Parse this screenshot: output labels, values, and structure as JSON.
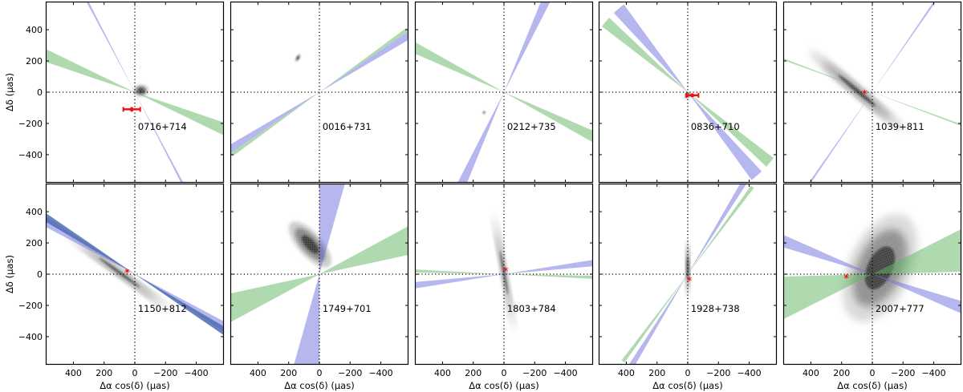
{
  "figure": {
    "x_axis_label": "Δα cos(δ) (μas)",
    "y_axis_label": "Δδ (μas)",
    "x_ticks": [
      400,
      200,
      0,
      -200,
      -400
    ],
    "y_ticks": [
      400,
      200,
      0,
      -200,
      -400
    ],
    "x_tick_labels": [
      "400",
      "200",
      "0",
      "−200",
      "−400"
    ],
    "y_tick_labels": [
      "400",
      "200",
      "0",
      "−200",
      "−400"
    ],
    "colors": {
      "blue_band": "#7070e0",
      "green_band": "#5fb55f",
      "overlap_band": "#4f6fb2",
      "marker": "#ee1111",
      "density": "#000000"
    }
  },
  "chart_data": [
    {
      "type": "heatmap",
      "source": "0716+714",
      "xlim": [
        580,
        -580
      ],
      "ylim": [
        -580,
        580
      ],
      "grid": false,
      "density": {
        "center": [
          -40,
          10
        ],
        "major_sigma": 45,
        "minor_sigma": 35,
        "angle_deg": 0,
        "tail_alpha": 0.2
      },
      "bands": [
        {
          "color": "blue",
          "angle_deg": -62,
          "width_deg": 1.2,
          "extent": 700
        },
        {
          "color": "green",
          "angle_deg": -22,
          "width_deg": 7,
          "extent": 700
        }
      ],
      "marker": {
        "x": 20,
        "y": -110,
        "xerr": 55,
        "yerr": 15,
        "style": "errorbar"
      }
    },
    {
      "type": "heatmap",
      "source": "0016+731",
      "xlim": [
        580,
        -580
      ],
      "ylim": [
        -580,
        580
      ],
      "grid": false,
      "density": {
        "center": [
          140,
          220
        ],
        "major_sigma": 25,
        "minor_sigma": 8,
        "angle_deg": 60,
        "tail_alpha": 0.7
      },
      "bands": [
        {
          "color": "blue",
          "angle_deg": 32,
          "width_deg": 4,
          "extent": 700
        },
        {
          "color": "green",
          "angle_deg": 35,
          "width_deg": 2,
          "extent": 700
        }
      ],
      "marker": null
    },
    {
      "type": "heatmap",
      "source": "0212+735",
      "xlim": [
        580,
        -580
      ],
      "ylim": [
        -580,
        580
      ],
      "grid": false,
      "density": {
        "center": [
          130,
          -130
        ],
        "major_sigma": 10,
        "minor_sigma": 5,
        "angle_deg": 60,
        "tail_alpha": 0.7
      },
      "bands": [
        {
          "color": "blue",
          "angle_deg": 65,
          "width_deg": 5,
          "extent": 700
        },
        {
          "color": "green",
          "angle_deg": -26,
          "width_deg": 6,
          "extent": 700
        }
      ],
      "marker": null
    },
    {
      "type": "heatmap",
      "source": "0836+710",
      "xlim": [
        580,
        -580
      ],
      "ylim": [
        -580,
        580
      ],
      "grid": false,
      "density": {
        "center": [
          0,
          -20
        ],
        "major_sigma": 22,
        "minor_sigma": 14,
        "angle_deg": 40,
        "tail_alpha": 0.5
      },
      "bands": [
        {
          "color": "blue",
          "angle_deg": -50,
          "width_deg": 7,
          "extent": 700
        },
        {
          "color": "green",
          "angle_deg": -40,
          "width_deg": 6,
          "extent": 700
        }
      ],
      "marker": {
        "x": -30,
        "y": -20,
        "xerr": 40,
        "yerr": 12,
        "style": "errorbar"
      }
    },
    {
      "type": "heatmap",
      "source": "1039+811",
      "xlim": [
        580,
        -580
      ],
      "ylim": [
        -580,
        580
      ],
      "grid": false,
      "density": {
        "center": [
          100,
          10
        ],
        "major_sigma": 320,
        "minor_sigma": 25,
        "angle_deg": -40,
        "tail_alpha": 0.9
      },
      "bands": [
        {
          "color": "blue",
          "angle_deg": 55,
          "width_deg": 1,
          "extent": 700
        },
        {
          "color": "green",
          "angle_deg": -20,
          "width_deg": 1,
          "extent": 700
        }
      ],
      "marker": {
        "x": 50,
        "y": -10,
        "style": "star"
      }
    },
    {
      "type": "heatmap",
      "source": "1150+812",
      "xlim": [
        580,
        -580
      ],
      "ylim": [
        -580,
        580
      ],
      "grid": false,
      "density": {
        "center": [
          100,
          10
        ],
        "major_sigma": 330,
        "minor_sigma": 18,
        "angle_deg": -36,
        "tail_alpha": 0.9
      },
      "bands": [
        {
          "color": "blue",
          "angle_deg": -30,
          "width_deg": 5,
          "extent": 700
        },
        {
          "color": "overlap",
          "angle_deg": -32,
          "width_deg": 4,
          "extent": 700
        }
      ],
      "marker": {
        "x": 50,
        "y": 10,
        "style": "star"
      }
    },
    {
      "type": "heatmap",
      "source": "1749+701",
      "xlim": [
        580,
        -580
      ],
      "ylim": [
        -580,
        580
      ],
      "grid": false,
      "density": {
        "center": [
          60,
          190
        ],
        "major_sigma": 150,
        "minor_sigma": 60,
        "angle_deg": -48,
        "tail_alpha": 0.8
      },
      "bands": [
        {
          "color": "blue",
          "angle_deg": 82,
          "width_deg": 16,
          "extent": 700
        },
        {
          "color": "green",
          "angle_deg": 20,
          "width_deg": 16,
          "extent": 700
        }
      ],
      "marker": null
    },
    {
      "type": "heatmap",
      "source": "1803+784",
      "xlim": [
        580,
        -580
      ],
      "ylim": [
        -580,
        580
      ],
      "grid": false,
      "density": {
        "center": [
          0,
          10
        ],
        "major_sigma": 300,
        "minor_sigma": 14,
        "angle_deg": -80,
        "tail_alpha": 0.9
      },
      "bands": [
        {
          "color": "blue",
          "angle_deg": 7,
          "width_deg": 4,
          "extent": 700
        },
        {
          "color": "green",
          "angle_deg": -2,
          "width_deg": 2,
          "extent": 700
        }
      ],
      "marker": {
        "x": -10,
        "y": 20,
        "style": "star"
      }
    },
    {
      "type": "heatmap",
      "source": "1928+738",
      "xlim": [
        580,
        -580
      ],
      "ylim": [
        -580,
        580
      ],
      "grid": false,
      "density": {
        "center": [
          0,
          40
        ],
        "major_sigma": 150,
        "minor_sigma": 10,
        "angle_deg": 90,
        "tail_alpha": 0.9
      },
      "bands": [
        {
          "color": "blue",
          "angle_deg": 58,
          "width_deg": 3,
          "extent": 700
        },
        {
          "color": "green",
          "angle_deg": 53,
          "width_deg": 2,
          "extent": 700
        }
      ],
      "marker": {
        "x": -10,
        "y": -40,
        "style": "star"
      }
    },
    {
      "type": "heatmap",
      "source": "2007+777",
      "xlim": [
        580,
        -580
      ],
      "ylim": [
        -580,
        580
      ],
      "grid": false,
      "density": {
        "center": [
          -50,
          40
        ],
        "major_sigma": 300,
        "minor_sigma": 160,
        "angle_deg": 65,
        "tail_alpha": 0.5
      },
      "bands": [
        {
          "color": "blue",
          "angle_deg": -20,
          "width_deg": 7,
          "extent": 700
        },
        {
          "color": "green",
          "angle_deg": 14,
          "width_deg": 25,
          "extent": 700
        }
      ],
      "marker": {
        "x": 170,
        "y": -25,
        "style": "star"
      }
    }
  ]
}
